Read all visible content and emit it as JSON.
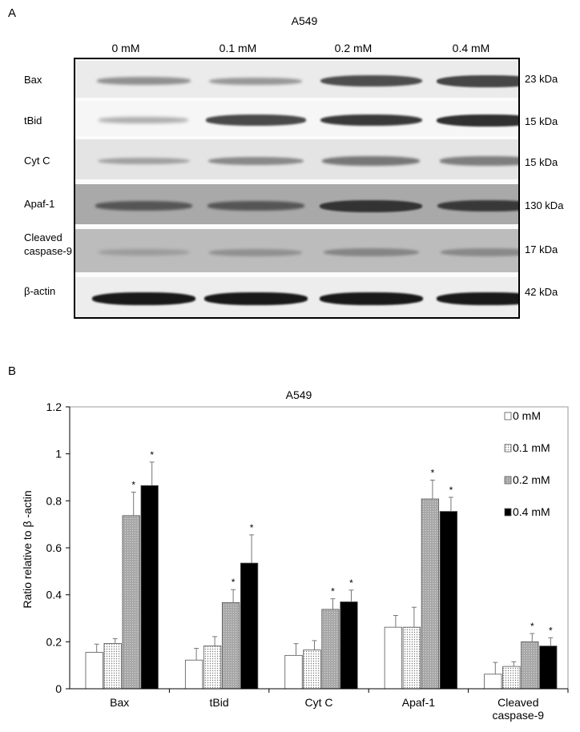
{
  "panel_a": {
    "letter": "A",
    "title": "A549",
    "concentrations": [
      "0 mM",
      "0.1 mM",
      "0.2 mM",
      "0.4 mM"
    ],
    "rows": [
      {
        "label": "Bax",
        "kda": "23 kDa",
        "strip_color": "#ebebeb",
        "band_color": "#3a3a3a",
        "intensity": [
          0.35,
          0.3,
          0.85,
          0.9
        ]
      },
      {
        "label": "tBid",
        "kda": "15 kDa",
        "strip_color": "#f6f6f6",
        "band_color": "#222222",
        "intensity": [
          0.12,
          0.75,
          0.85,
          0.9
        ]
      },
      {
        "label": "Cyt C",
        "kda": "15 kDa",
        "strip_color": "#e4e4e4",
        "band_color": "#4a4a4a",
        "intensity": [
          0.25,
          0.45,
          0.6,
          0.55
        ]
      },
      {
        "label": "Apaf-1",
        "kda": "130 kDa",
        "strip_color": "#a9a9a9",
        "band_color": "#2b2b2b",
        "intensity": [
          0.55,
          0.55,
          0.9,
          0.85
        ]
      },
      {
        "label": "Cleaved caspase-9",
        "kda": "17 kDa",
        "strip_color": "#bcbcbc",
        "band_color": "#606060",
        "intensity": [
          0.15,
          0.3,
          0.45,
          0.4
        ]
      },
      {
        "label": "β-actin",
        "kda": "42 kDa",
        "strip_color": "#ededed",
        "band_color": "#111111",
        "intensity": [
          0.95,
          0.95,
          0.95,
          0.95
        ]
      }
    ]
  },
  "panel_b": {
    "letter": "B"
  },
  "chart_data": {
    "type": "bar",
    "title": "A549",
    "ylabel": "Ratio relative to β -actin",
    "xlabel": "",
    "ylim": [
      0,
      1.2
    ],
    "yticks": [
      "0",
      "0.2",
      "0.4",
      "0.6",
      "0.8",
      "1",
      "1.2"
    ],
    "ytick_values": [
      0,
      0.2,
      0.4,
      0.6,
      0.8,
      1.0,
      1.2
    ],
    "categories": [
      "Bax",
      "tBid",
      "Cyt C",
      "Apaf-1",
      "Cleaved caspase-9"
    ],
    "category_lines": [
      [
        "Bax"
      ],
      [
        "tBid"
      ],
      [
        "Cyt C"
      ],
      [
        "Apaf-1"
      ],
      [
        "Cleaved",
        "caspase-9"
      ]
    ],
    "legend_position": "top-right",
    "significance_marker": "*",
    "series": [
      {
        "name": "0 mM",
        "fill": "white",
        "values": [
          0.155,
          0.122,
          0.142,
          0.262,
          0.062
        ],
        "errors": [
          0.035,
          0.05,
          0.05,
          0.05,
          0.05
        ],
        "significant": [
          false,
          false,
          false,
          false,
          false
        ]
      },
      {
        "name": "0.1 mM",
        "fill": "dots",
        "values": [
          0.193,
          0.182,
          0.165,
          0.262,
          0.095
        ],
        "errors": [
          0.02,
          0.04,
          0.04,
          0.085,
          0.02
        ],
        "significant": [
          false,
          false,
          false,
          false,
          false
        ]
      },
      {
        "name": "0.2 mM",
        "fill": "gray",
        "values": [
          0.737,
          0.367,
          0.338,
          0.808,
          0.2
        ],
        "errors": [
          0.1,
          0.055,
          0.045,
          0.08,
          0.035
        ],
        "significant": [
          true,
          true,
          true,
          true,
          true
        ]
      },
      {
        "name": "0.4 mM",
        "fill": "black",
        "values": [
          0.865,
          0.535,
          0.37,
          0.755,
          0.182
        ],
        "errors": [
          0.1,
          0.12,
          0.05,
          0.06,
          0.035
        ],
        "significant": [
          true,
          true,
          true,
          true,
          true
        ]
      }
    ]
  }
}
